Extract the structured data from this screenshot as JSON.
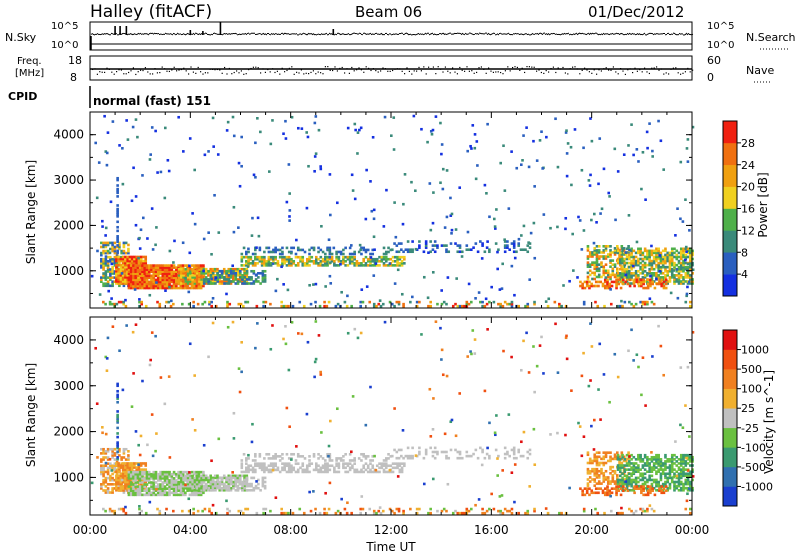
{
  "header": {
    "station": "Halley (fitACF)",
    "beam": "Beam 06",
    "date": "01/Dec/2012"
  },
  "noise_panel": {
    "left_label": "N.Sky",
    "right_label": "N.Search",
    "left_ticks": [
      "10^5",
      "10^0"
    ],
    "right_ticks": [
      "10^5",
      "10^0"
    ]
  },
  "freq_panel": {
    "left_label_1": "Freq.",
    "left_label_2": "[MHz]",
    "left_ticks": [
      "18",
      "8"
    ],
    "right_label": "Nave",
    "right_ticks": [
      "60",
      "0"
    ]
  },
  "cpid": {
    "label": "CPID",
    "program": "normal (fast) 151"
  },
  "chart_data": [
    {
      "type": "heatmap",
      "ylabel": "Slant Range [km]",
      "xlabel": "Time UT",
      "xlim": [
        "00:00",
        "24:00"
      ],
      "ylim": [
        180,
        4500
      ],
      "x_ticks": [
        "00:00",
        "04:00",
        "08:00",
        "12:00",
        "16:00",
        "20:00",
        "00:00"
      ],
      "y_ticks": [
        1000,
        2000,
        3000,
        4000
      ],
      "colorbar": {
        "label": "Power [dB]",
        "ticks": [
          "4",
          "8",
          "12",
          "16",
          "20",
          "24",
          "28"
        ],
        "colors": [
          "#1430e0",
          "#2a5fbf",
          "#3a8a7a",
          "#4fb04a",
          "#f0d020",
          "#f0a010",
          "#f07010",
          "#f02010"
        ]
      }
    },
    {
      "type": "heatmap",
      "ylabel": "Slant Range [km]",
      "xlabel": "Time UT",
      "xlim": [
        "00:00",
        "24:00"
      ],
      "ylim": [
        180,
        4500
      ],
      "x_ticks": [
        "00:00",
        "04:00",
        "08:00",
        "12:00",
        "16:00",
        "20:00",
        "00:00"
      ],
      "y_ticks": [
        1000,
        2000,
        3000,
        4000
      ],
      "colorbar": {
        "label": "Velocity [m s^-1]",
        "ticks": [
          "1000",
          "500",
          "100",
          "25",
          "-25",
          "-100",
          "-500",
          "-1000"
        ],
        "colors": [
          "#1a3fcf",
          "#3070b0",
          "#3a9a70",
          "#6ac040",
          "#c0c0c0",
          "#f0b030",
          "#f08020",
          "#f05010",
          "#e01010"
        ]
      }
    }
  ]
}
